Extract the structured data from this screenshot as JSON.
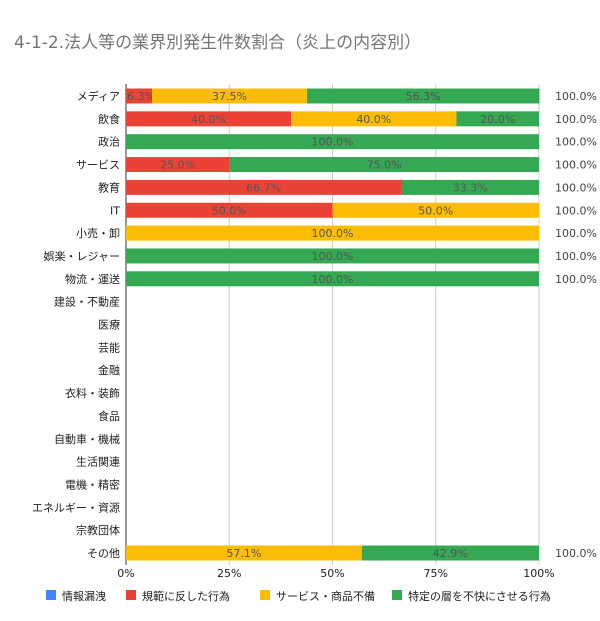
{
  "title": "4-1-2.法人等の業界別発生件数割合（炎上の内容別）",
  "chart_data": {
    "type": "bar",
    "orientation": "horizontal",
    "stacked": "percent",
    "categories": [
      "メディア",
      "飲食",
      "政治",
      "サービス",
      "教育",
      "IT",
      "小売・卸",
      "娯楽・レジャー",
      "物流・運送",
      "建設・不動産",
      "医療",
      "芸能",
      "金融",
      "衣料・装飾",
      "食品",
      "自動車・機械",
      "生活関連",
      "電機・精密",
      "エネルギー・資源",
      "宗教団体",
      "その他"
    ],
    "series": [
      {
        "name": "情報漏洩",
        "color": "#4285f4",
        "values": [
          0,
          0,
          0,
          0,
          0,
          0,
          0,
          0,
          0,
          null,
          null,
          null,
          null,
          null,
          null,
          null,
          null,
          null,
          null,
          null,
          0
        ]
      },
      {
        "name": "規範に反した行為",
        "color": "#ea4335",
        "values": [
          6.3,
          40.0,
          0,
          25.0,
          66.7,
          50.0,
          0,
          0,
          0,
          null,
          null,
          null,
          null,
          null,
          null,
          null,
          null,
          null,
          null,
          null,
          0
        ]
      },
      {
        "name": "サービス・商品不備",
        "color": "#fbbc04",
        "values": [
          37.5,
          40.0,
          0,
          0,
          0,
          50.0,
          100.0,
          0,
          0,
          null,
          null,
          null,
          null,
          null,
          null,
          null,
          null,
          null,
          null,
          null,
          57.1
        ]
      },
      {
        "name": "特定の層を不快にさせる行為",
        "color": "#34a853",
        "values": [
          56.3,
          20.0,
          100.0,
          75.0,
          33.3,
          0,
          0,
          100.0,
          100.0,
          null,
          null,
          null,
          null,
          null,
          null,
          null,
          null,
          null,
          null,
          null,
          42.9
        ]
      }
    ],
    "value_labels": [
      [
        "6.3%",
        "37.5%",
        "56.3%"
      ],
      [
        "40.0%",
        "40.0%",
        "20.0%"
      ],
      [
        "100.0%"
      ],
      [
        "25.0%",
        "75.0%"
      ],
      [
        "66.7%",
        "33.3%"
      ],
      [
        "50.0%",
        "50.0%"
      ],
      [
        "100.0%"
      ],
      [
        "100.0%"
      ],
      [
        "100.0%"
      ],
      [],
      [],
      [],
      [],
      [],
      [],
      [],
      [],
      [],
      [],
      [],
      [
        "57.1%",
        "42.9%"
      ]
    ],
    "totals": [
      "100.0%",
      "100.0%",
      "100.0%",
      "100.0%",
      "100.0%",
      "100.0%",
      "100.0%",
      "100.0%",
      "100.0%",
      "",
      "",
      "",
      "",
      "",
      "",
      "",
      "",
      "",
      "",
      "",
      "100.0%"
    ],
    "xticks": [
      "0%",
      "25%",
      "50%",
      "75%",
      "100%"
    ],
    "xlim": [
      0,
      100
    ],
    "grid": true,
    "legend_position": "bottom"
  }
}
